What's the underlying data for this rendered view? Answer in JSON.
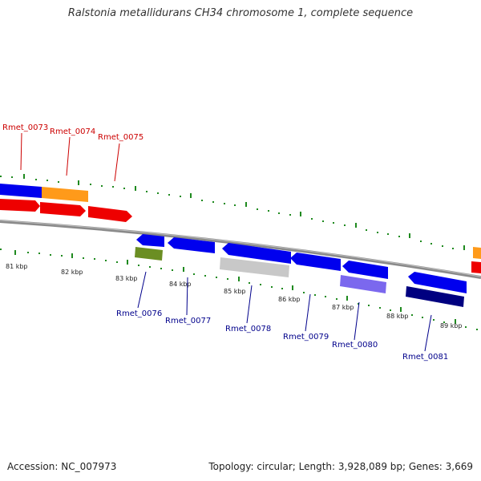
{
  "title": "Ralstonia metallidurans CH34 chromosome 1, complete sequence",
  "footer": {
    "accession": "Accession: NC_007973",
    "topology": "Topology: circular; Length: 3,928,089 bp; Genes: 3,669"
  },
  "colors": {
    "backbone": "#8a8a8a",
    "tick": "#1f8a1f",
    "top_label": "#cc0000",
    "bottom_label": "#00008b",
    "blue": "#0000ee",
    "red": "#ee0000",
    "orange": "#ff9a1a",
    "olive": "#6b8e23",
    "gray": "#c8c8c8",
    "purple": "#7b68ee",
    "navy": "#000080"
  },
  "kbp_labels": [
    "81 kbp",
    "82 kbp",
    "83 kbp",
    "84 kbp",
    "85 kbp",
    "86 kbp",
    "87 kbp",
    "88 kbp",
    "89 kbp"
  ],
  "top_gene_labels": [
    "Rmet_0073",
    "Rmet_0074",
    "Rmet_0075"
  ],
  "bottom_gene_labels": [
    "Rmet_0076",
    "Rmet_0077",
    "Rmet_0078",
    "Rmet_0079",
    "Rmet_0080",
    "Rmet_0081"
  ]
}
